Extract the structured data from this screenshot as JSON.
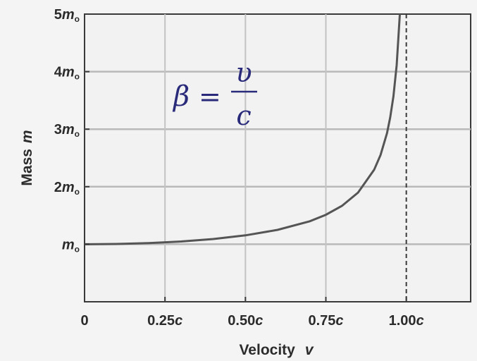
{
  "chart_data": {
    "type": "line",
    "xlabel": "Velocity",
    "xlabel_var": "v",
    "ylabel": "Mass",
    "ylabel_var": "m",
    "xlim": [
      0,
      1.2
    ],
    "ylim": [
      0,
      5
    ],
    "x_ticks": [
      {
        "value": 0,
        "label": "0",
        "suffix": ""
      },
      {
        "value": 0.25,
        "label": "0.25",
        "suffix": "c"
      },
      {
        "value": 0.5,
        "label": "0.50",
        "suffix": "c"
      },
      {
        "value": 0.75,
        "label": "0.75",
        "suffix": "c"
      },
      {
        "value": 1.0,
        "label": "1.00",
        "suffix": "c"
      }
    ],
    "y_ticks": [
      {
        "value": 1,
        "label": "",
        "var": "m",
        "sub": "o"
      },
      {
        "value": 2,
        "label": "2",
        "var": "m",
        "sub": "o"
      },
      {
        "value": 3,
        "label": "3",
        "var": "m",
        "sub": "o"
      },
      {
        "value": 4,
        "label": "4",
        "var": "m",
        "sub": "o"
      },
      {
        "value": 5,
        "label": "5",
        "var": "m",
        "sub": "o"
      }
    ],
    "grid": true,
    "asymptote_x": 1.0,
    "series": [
      {
        "x": [
          0,
          0.1,
          0.2,
          0.3,
          0.4,
          0.5,
          0.6,
          0.7,
          0.75,
          0.8,
          0.85,
          0.9,
          0.92,
          0.94,
          0.95,
          0.96,
          0.97,
          0.98
        ],
        "values": [
          1.0,
          1.005,
          1.021,
          1.048,
          1.091,
          1.155,
          1.25,
          1.4,
          1.512,
          1.667,
          1.898,
          2.294,
          2.552,
          2.931,
          3.203,
          3.571,
          4.113,
          5.025
        ],
        "color": "#555555"
      }
    ],
    "annotation": {
      "lhs": "β",
      "equals": "=",
      "numerator": "υ",
      "denominator": "c",
      "color": "#2a2a7a"
    }
  }
}
